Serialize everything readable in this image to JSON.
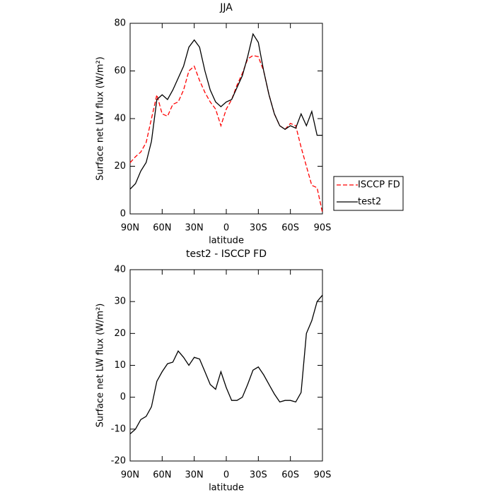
{
  "chart_data": [
    {
      "type": "line",
      "title": "JJA",
      "x_label": "latitude",
      "y_label": "Surface net LW flux (W/m²)",
      "x": [
        90,
        85,
        80,
        75,
        70,
        65,
        60,
        55,
        50,
        45,
        40,
        35,
        30,
        25,
        20,
        15,
        10,
        5,
        0,
        -5,
        -10,
        -15,
        -20,
        -25,
        -30,
        -35,
        -40,
        -45,
        -50,
        -55,
        -60,
        -65,
        -70,
        -75,
        -80,
        -85,
        -90
      ],
      "series": [
        {
          "name": "ISCCP FD",
          "color": "#ff0000",
          "linestyle": "dashed",
          "values": [
            21.5,
            24,
            26,
            30,
            40,
            50,
            42,
            41,
            46,
            47,
            52,
            60,
            62,
            56,
            51,
            47,
            44,
            37,
            44,
            48,
            54,
            59,
            65,
            66.5,
            66,
            60,
            50,
            42,
            37,
            35.5,
            38,
            37,
            28,
            20,
            12,
            11,
            0.5
          ]
        },
        {
          "name": "test2",
          "color": "#000000",
          "linestyle": "solid",
          "values": [
            10.4,
            12.7,
            18,
            21.6,
            30.5,
            48,
            50,
            48,
            52,
            57,
            62,
            70,
            73,
            70,
            60,
            52,
            47,
            45,
            47,
            48,
            53,
            58,
            66,
            75.5,
            72,
            60,
            50,
            42,
            37,
            35.5,
            37,
            36,
            42,
            37,
            43,
            33,
            33
          ]
        }
      ],
      "xlim": [
        90,
        -90
      ],
      "xticks": [
        {
          "value": 90,
          "label": "90N"
        },
        {
          "value": 60,
          "label": "60N"
        },
        {
          "value": 30,
          "label": "30N"
        },
        0,
        {
          "value": -30,
          "label": "30S"
        },
        {
          "value": -60,
          "label": "60S"
        },
        {
          "value": -90,
          "label": "90S"
        }
      ],
      "ylim": [
        0,
        80
      ],
      "yticks": [
        0,
        20,
        40,
        60,
        80
      ],
      "legend": "right"
    },
    {
      "type": "line",
      "title": "test2 - ISCCP FD",
      "x_label": "latitude",
      "y_label": "Surface net LW flux (W/m²)",
      "x": [
        90,
        85,
        80,
        75,
        70,
        65,
        60,
        55,
        50,
        45,
        40,
        35,
        30,
        25,
        20,
        15,
        10,
        5,
        0,
        -5,
        -10,
        -15,
        -20,
        -25,
        -30,
        -35,
        -40,
        -45,
        -50,
        -55,
        -60,
        -65,
        -70,
        -75,
        -80,
        -85,
        -90
      ],
      "series": [
        {
          "color": "#000000",
          "linestyle": "solid",
          "values": [
            -11.5,
            -10,
            -7,
            -6,
            -3,
            5,
            8,
            10.5,
            11,
            14.5,
            12.5,
            10,
            12.5,
            12,
            8,
            4,
            2.5,
            8,
            3,
            -1,
            -1,
            0,
            4,
            8.5,
            9.5,
            7,
            4,
            1,
            -1.5,
            -1,
            -1,
            -1.5,
            1.5,
            20,
            24,
            30,
            32
          ]
        }
      ],
      "xlim": [
        90,
        -90
      ],
      "xticks": [
        {
          "value": 90,
          "label": "90N"
        },
        {
          "value": 60,
          "label": "60N"
        },
        {
          "value": 30,
          "label": "30N"
        },
        0,
        {
          "value": -30,
          "label": "30S"
        },
        {
          "value": -60,
          "label": "60S"
        },
        {
          "value": -90,
          "label": "90S"
        }
      ],
      "ylim": [
        -20,
        40
      ],
      "yticks": [
        -20,
        -10,
        0,
        10,
        20,
        30,
        40
      ]
    }
  ]
}
